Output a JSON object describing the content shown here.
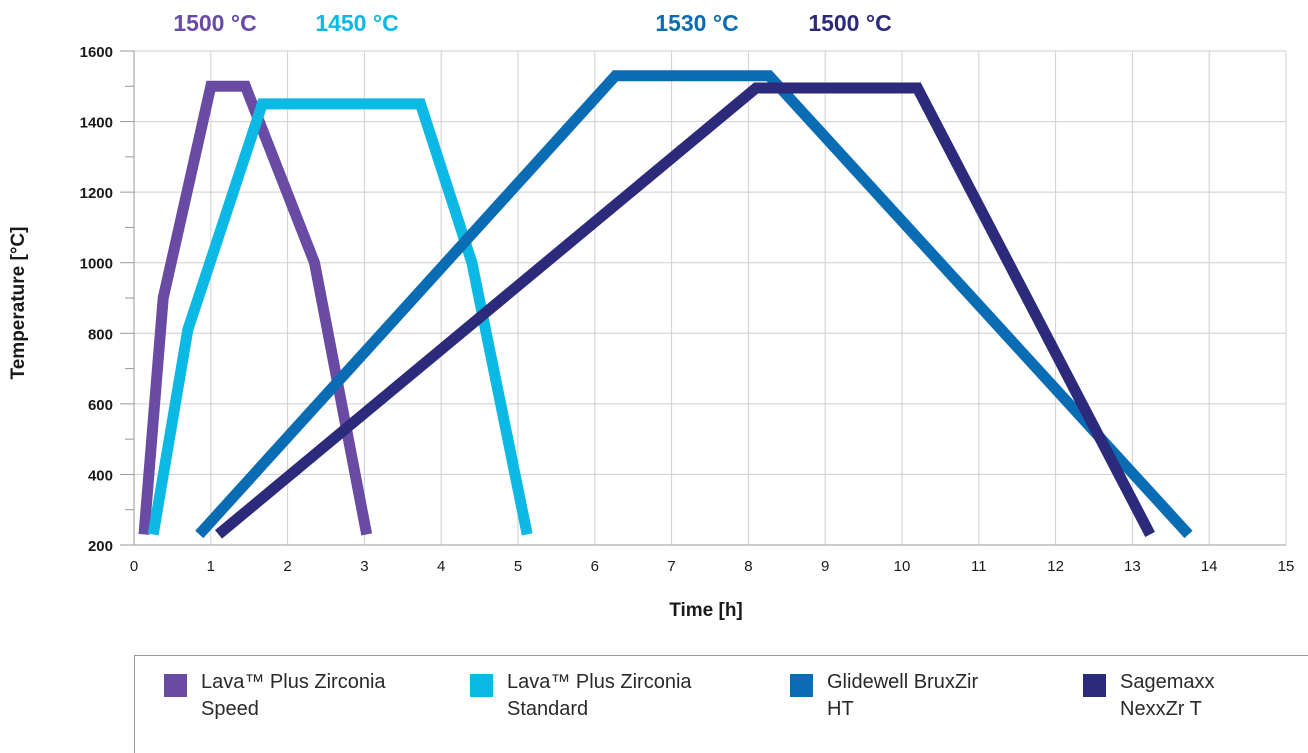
{
  "chart_data": {
    "type": "line",
    "title": "",
    "xlabel": "Time [h]",
    "ylabel": "Temperature [°C]",
    "xlim": [
      0,
      15
    ],
    "ylim": [
      200,
      1600
    ],
    "xticks": [
      "0",
      "1",
      "2",
      "3",
      "4",
      "5",
      "6",
      "7",
      "8",
      "9",
      "10",
      "11",
      "12",
      "13",
      "14",
      "15"
    ],
    "yticks": [
      "200",
      "400",
      "600",
      "800",
      "1000",
      "1200",
      "1400",
      "1600"
    ],
    "grid": true,
    "legend_position": "bottom",
    "series": [
      {
        "name": "Lava™ Plus Zirconia Speed",
        "color": "#6a4ba3",
        "peak_label": "1500 °C",
        "points": [
          [
            0.13,
            230
          ],
          [
            0.38,
            900
          ],
          [
            1.0,
            1500
          ],
          [
            1.45,
            1500
          ],
          [
            2.35,
            1000
          ],
          [
            3.03,
            230
          ]
        ]
      },
      {
        "name": "Lava™ Plus  Zirconia Standard",
        "color": "#0bb9e4",
        "peak_label": "1450 °C",
        "points": [
          [
            0.25,
            230
          ],
          [
            0.7,
            810
          ],
          [
            1.67,
            1450
          ],
          [
            3.73,
            1450
          ],
          [
            4.4,
            1000
          ],
          [
            5.12,
            230
          ]
        ]
      },
      {
        "name": "Glidewell BruxZir HT",
        "color": "#0a6db4",
        "peak_label": "1530 °C",
        "points": [
          [
            0.85,
            230
          ],
          [
            6.27,
            1530
          ],
          [
            8.27,
            1530
          ],
          [
            13.73,
            230
          ]
        ]
      },
      {
        "name": "Sagemaxx NexxZr T",
        "color": "#2c2a7a",
        "peak_label": "1500 °C",
        "points": [
          [
            1.1,
            230
          ],
          [
            8.1,
            1495
          ],
          [
            10.2,
            1495
          ],
          [
            13.23,
            230
          ]
        ]
      }
    ],
    "legend": [
      {
        "label": "Lava™ Plus Zirconia\nSpeed",
        "color": "#6a4ba3"
      },
      {
        "label": "Lava™ Plus  Zirconia\nStandard",
        "color": "#0bb9e4"
      },
      {
        "label": "Glidewell BruxZir\nHT",
        "color": "#0a6db4"
      },
      {
        "label": "Sagemaxx\nNexxZr T",
        "color": "#2c2a7a"
      }
    ]
  }
}
